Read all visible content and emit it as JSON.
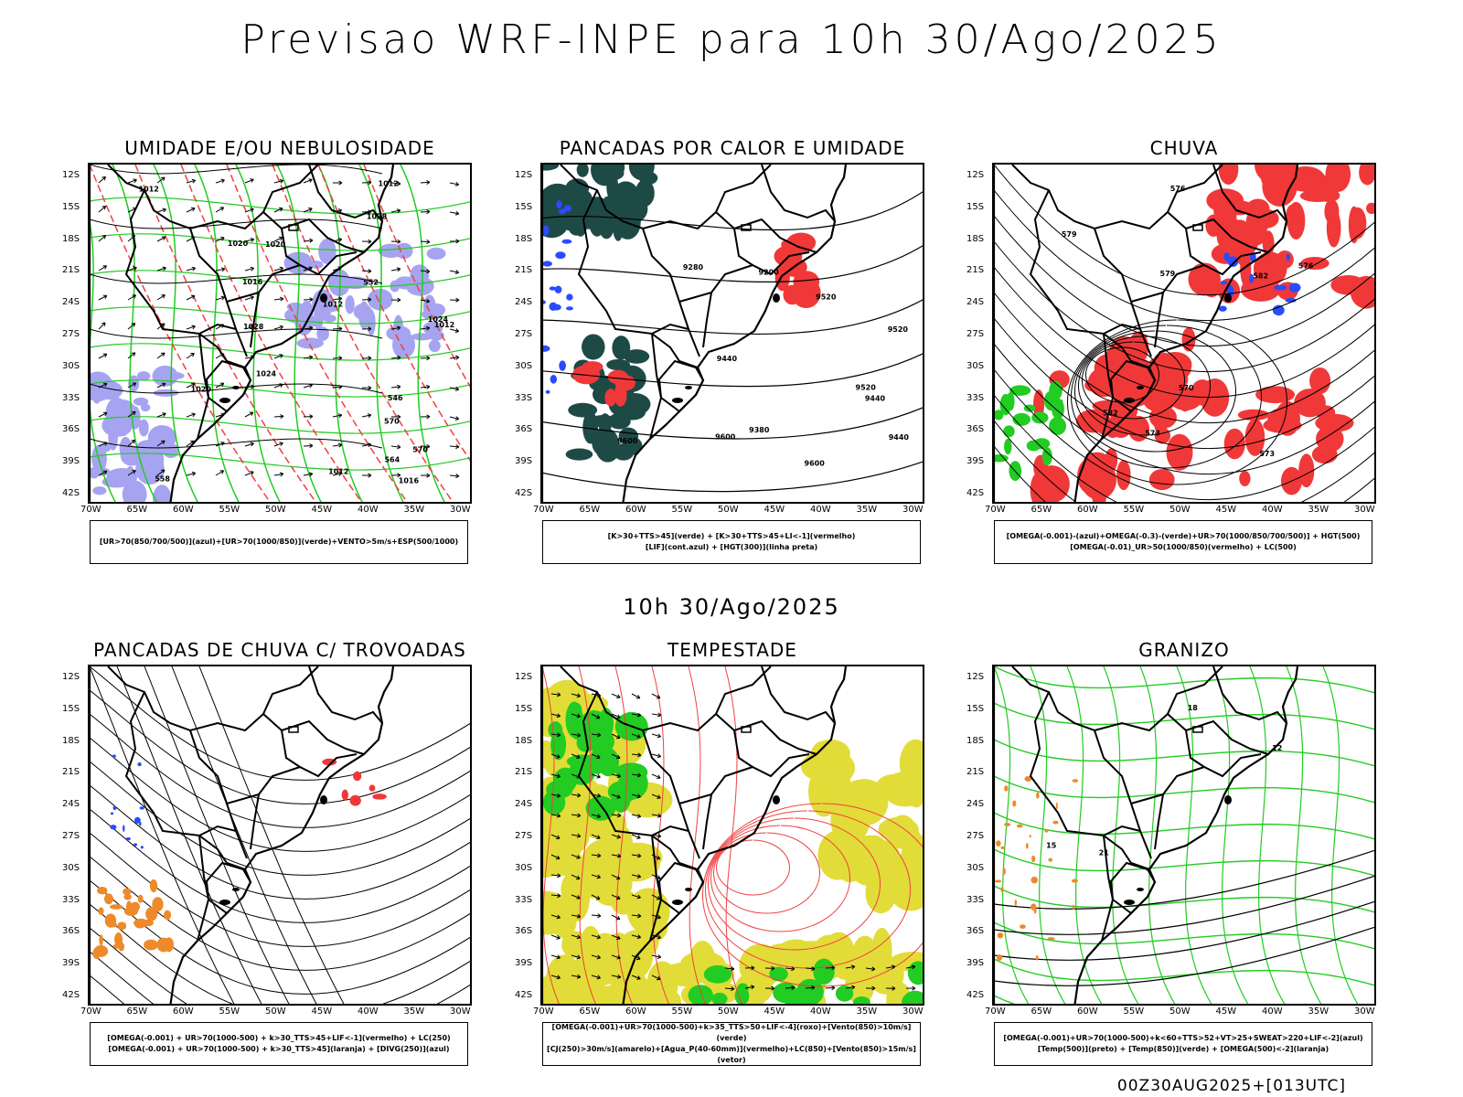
{
  "title": "Previsao WRF-INPE  para 10h 30/Ago/2025",
  "subtitle": "10h 30/Ago/2025",
  "footer": "00Z30AUG2025+[013UTC]",
  "lat_labels": [
    "12S",
    "15S",
    "18S",
    "21S",
    "24S",
    "27S",
    "30S",
    "33S",
    "36S",
    "39S",
    "42S"
  ],
  "lon_labels": [
    "70W",
    "65W",
    "60W",
    "55W",
    "50W",
    "45W",
    "40W",
    "35W",
    "30W"
  ],
  "panels": [
    {
      "title": "UMIDADE E/OU NEBULOSIDADE",
      "legend": [
        "[UR>70(850/700/500)](azul)+[UR>70(1000/850)](verde)+VENTO>5m/s+ESP(500/1000)"
      ],
      "labels": [
        "1012",
        "1012",
        "1012",
        "1016",
        "1020",
        "1020",
        "1024",
        "1028",
        "1016",
        "1020",
        "1024",
        "1028",
        "1012",
        "1012",
        "570",
        "570",
        "564",
        "558",
        "552",
        "546"
      ]
    },
    {
      "title": "PANCADAS POR CALOR E UMIDADE",
      "legend": [
        "[K>30+TTS>45](verde) + [K>30+TTS>45+LI<-1](vermelho)",
        "[LIF](cont.azul) + [HGT(300)](linha preta)"
      ],
      "labels": [
        "9600",
        "9600",
        "9600",
        "9520",
        "9520",
        "9440",
        "9440",
        "9380",
        "9280",
        "9200",
        "9440",
        "9520"
      ]
    },
    {
      "title": "CHUVA",
      "legend": [
        "[OMEGA(-0.001)-(azul)+OMEGA(-0.3)-(verde)+UR>70(1000/850/700/500)] + HGT(500)",
        "[OMEGA(-0.01)_UR>50(1000/850)(vermelho) + LC(500)"
      ],
      "labels": [
        "582",
        "579",
        "576",
        "573",
        "582",
        "576",
        "573",
        "570",
        "579"
      ]
    },
    {
      "title": "PANCADAS DE CHUVA C/ TROVOADAS",
      "legend": [
        "[OMEGA(-0.001) + UR>70(1000-500) + k>30_TTS>45+LIF<-1](vermelho) + LC(250)",
        "[OMEGA(-0.001) + UR>70(1000-500) + k>30_TTS>45](laranja) + [DIVG(250)](azul)"
      ],
      "labels": []
    },
    {
      "title": "TEMPESTADE",
      "legend": [
        "[OMEGA(-0.001)+UR>70(1000-500)+k>35_TTS>50+LIF<-4](roxo)+[Vento(850)>10m/s](verde)",
        "[CJ(250)>30m/s](amarelo)+[Agua_P(40-60mm)](vermelho)+LC(850)+[Vento(850)>15m/s](vetor)"
      ],
      "labels": []
    },
    {
      "title": "GRANIZO",
      "legend": [
        "[OMEGA(-0.001)+UR>70(1000-500)+k<60+TTS>52+VT>25+SWEAT>220+LIF<-2](azul)",
        "[Temp(500)](preto) + [Temp(850)](verde) + [OMEGA(500)<-2](laranja)"
      ],
      "labels": [
        "12",
        "15",
        "18",
        "21"
      ]
    }
  ],
  "colors": {
    "blue": "#2a4bff",
    "green": "#22cc22",
    "red": "#f03838",
    "dark": "#1e4a46",
    "yellow": "#e2dc38",
    "orange": "#ee8a2a",
    "lavender": "#a6a4f0",
    "contour_red": "#f04040"
  }
}
